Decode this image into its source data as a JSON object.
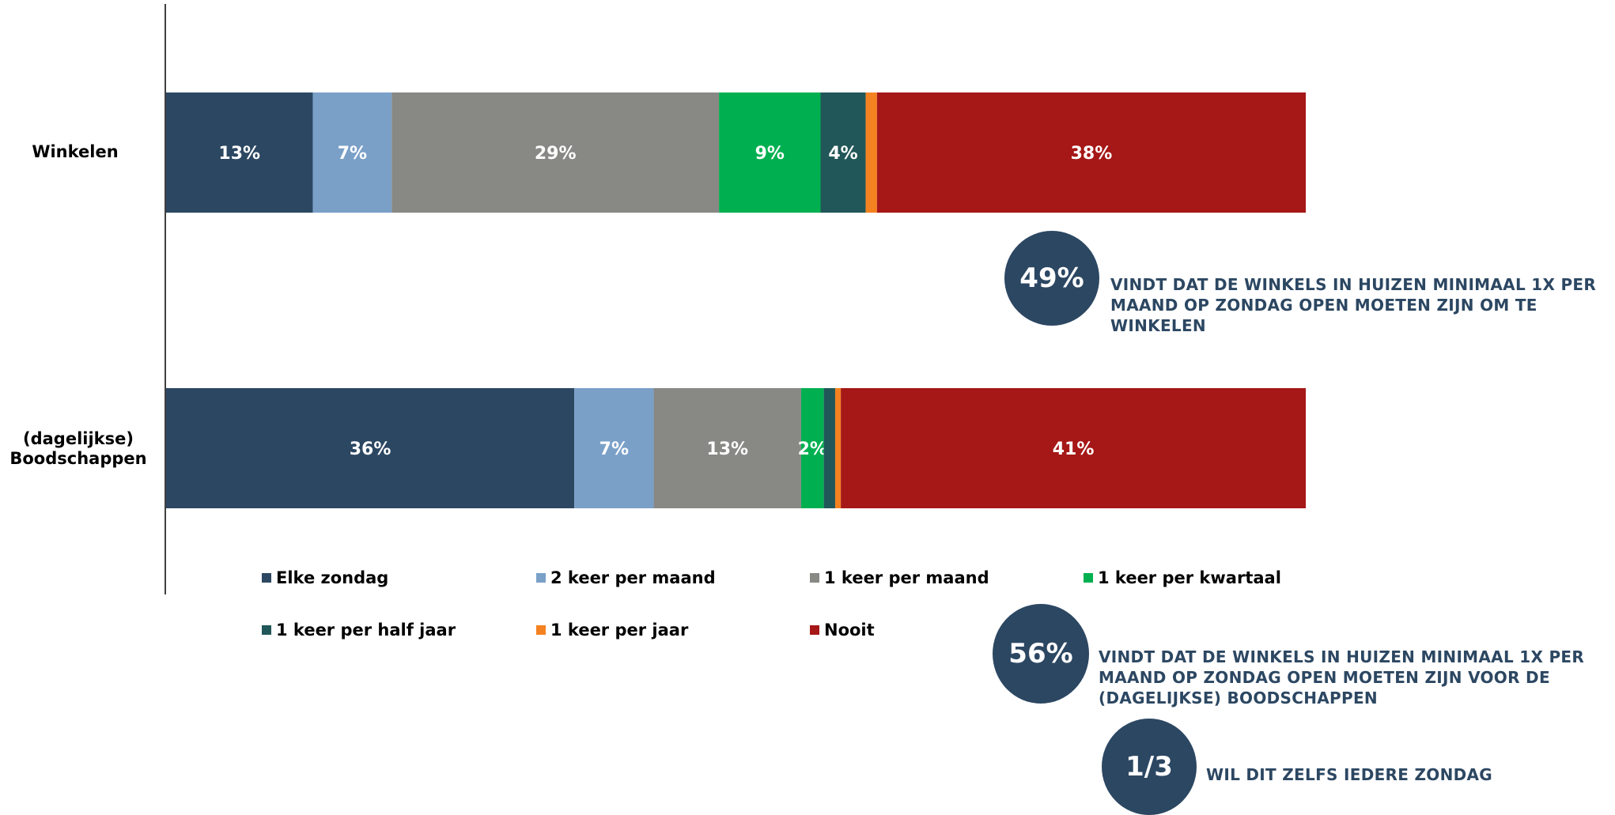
{
  "chart_data": {
    "type": "bar",
    "orientation": "horizontal",
    "stacked": true,
    "categories": [
      "Winkelen",
      "(dagelijkse) Boodschappen"
    ],
    "series": [
      {
        "name": "Elke zondag",
        "color": "#2c4762",
        "values": [
          13,
          36
        ],
        "labels": [
          "13%",
          "36%"
        ]
      },
      {
        "name": "2 keer per maand",
        "color": "#7aa0c8",
        "values": [
          7,
          7
        ],
        "labels": [
          "7%",
          "7%"
        ]
      },
      {
        "name": "1 keer per maand",
        "color": "#888884",
        "values": [
          29,
          13
        ],
        "labels": [
          "29%",
          "13%"
        ]
      },
      {
        "name": "1 keer per kwartaal",
        "color": "#00b050",
        "values": [
          9,
          2
        ],
        "labels": [
          "9%",
          "2%"
        ]
      },
      {
        "name": "1 keer per half jaar",
        "color": "#215758",
        "values": [
          4,
          1
        ],
        "labels": [
          "4%",
          ""
        ]
      },
      {
        "name": "1 keer per jaar",
        "color": "#f58220",
        "values": [
          1,
          0.5
        ],
        "labels": [
          "",
          ""
        ]
      },
      {
        "name": "Nooit",
        "color": "#a61717",
        "values": [
          38,
          41
        ],
        "labels": [
          "38%",
          "41%"
        ]
      }
    ],
    "legend": "bottom",
    "grid": false
  },
  "callouts": [
    {
      "value": "49%",
      "text": "VINDT DAT DE WINKELS IN HUIZEN MINIMAAL 1X PER MAAND OP ZONDAG OPEN MOETEN ZIJN OM TE WINKELEN"
    },
    {
      "value": "56%",
      "text": "VINDT DAT DE WINKELS IN HUIZEN MINIMAAL 1X PER MAAND OP ZONDAG OPEN MOETEN ZIJN VOOR DE (DAGELIJKSE) BOODSCHAPPEN"
    },
    {
      "value": "1/3",
      "text": "WIL DIT ZELFS IEDERE ZONDAG"
    }
  ],
  "colors": {
    "callout_circle": "#2c4762",
    "callout_text": "#2c4762"
  }
}
